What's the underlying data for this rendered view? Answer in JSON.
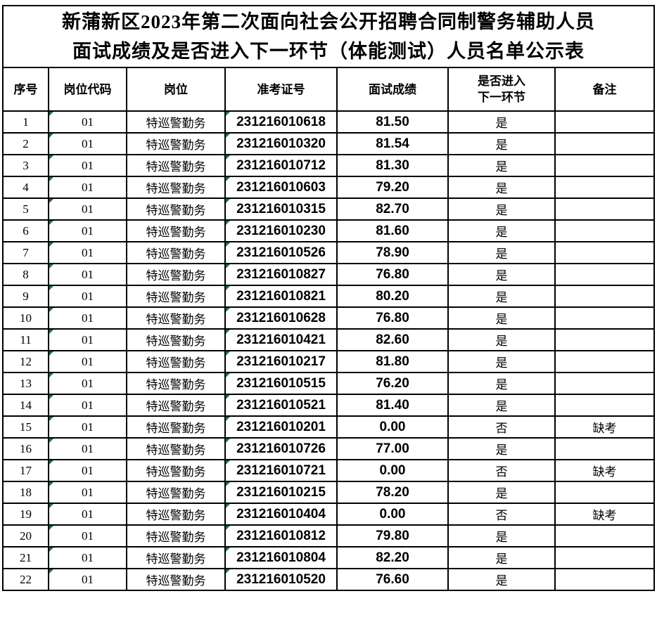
{
  "title": {
    "line1": "新蒲新区2023年第二次面向社会公开招聘合同制警务辅助人员",
    "line2": "面试成绩及是否进入下一环节（体能测试）人员名单公示表"
  },
  "table": {
    "headers": {
      "no": "序号",
      "code": "岗位代码",
      "post": "岗位",
      "ticket": "准考证号",
      "score": "面试成绩",
      "pass": "是否进入\n下一环节",
      "note": "备注"
    }
  },
  "rows": [
    {
      "no": "1",
      "code": "01",
      "post": "特巡警勤务",
      "ticket": "231216010618",
      "score": "81.50",
      "pass": "是",
      "note": ""
    },
    {
      "no": "2",
      "code": "01",
      "post": "特巡警勤务",
      "ticket": "231216010320",
      "score": "81.54",
      "pass": "是",
      "note": ""
    },
    {
      "no": "3",
      "code": "01",
      "post": "特巡警勤务",
      "ticket": "231216010712",
      "score": "81.30",
      "pass": "是",
      "note": ""
    },
    {
      "no": "4",
      "code": "01",
      "post": "特巡警勤务",
      "ticket": "231216010603",
      "score": "79.20",
      "pass": "是",
      "note": ""
    },
    {
      "no": "5",
      "code": "01",
      "post": "特巡警勤务",
      "ticket": "231216010315",
      "score": "82.70",
      "pass": "是",
      "note": ""
    },
    {
      "no": "6",
      "code": "01",
      "post": "特巡警勤务",
      "ticket": "231216010230",
      "score": "81.60",
      "pass": "是",
      "note": ""
    },
    {
      "no": "7",
      "code": "01",
      "post": "特巡警勤务",
      "ticket": "231216010526",
      "score": "78.90",
      "pass": "是",
      "note": ""
    },
    {
      "no": "8",
      "code": "01",
      "post": "特巡警勤务",
      "ticket": "231216010827",
      "score": "76.80",
      "pass": "是",
      "note": ""
    },
    {
      "no": "9",
      "code": "01",
      "post": "特巡警勤务",
      "ticket": "231216010821",
      "score": "80.20",
      "pass": "是",
      "note": ""
    },
    {
      "no": "10",
      "code": "01",
      "post": "特巡警勤务",
      "ticket": "231216010628",
      "score": "76.80",
      "pass": "是",
      "note": ""
    },
    {
      "no": "11",
      "code": "01",
      "post": "特巡警勤务",
      "ticket": "231216010421",
      "score": "82.60",
      "pass": "是",
      "note": ""
    },
    {
      "no": "12",
      "code": "01",
      "post": "特巡警勤务",
      "ticket": "231216010217",
      "score": "81.80",
      "pass": "是",
      "note": ""
    },
    {
      "no": "13",
      "code": "01",
      "post": "特巡警勤务",
      "ticket": "231216010515",
      "score": "76.20",
      "pass": "是",
      "note": ""
    },
    {
      "no": "14",
      "code": "01",
      "post": "特巡警勤务",
      "ticket": "231216010521",
      "score": "81.40",
      "pass": "是",
      "note": ""
    },
    {
      "no": "15",
      "code": "01",
      "post": "特巡警勤务",
      "ticket": "231216010201",
      "score": "0.00",
      "pass": "否",
      "note": "缺考"
    },
    {
      "no": "16",
      "code": "01",
      "post": "特巡警勤务",
      "ticket": "231216010726",
      "score": "77.00",
      "pass": "是",
      "note": ""
    },
    {
      "no": "17",
      "code": "01",
      "post": "特巡警勤务",
      "ticket": "231216010721",
      "score": "0.00",
      "pass": "否",
      "note": "缺考"
    },
    {
      "no": "18",
      "code": "01",
      "post": "特巡警勤务",
      "ticket": "231216010215",
      "score": "78.20",
      "pass": "是",
      "note": ""
    },
    {
      "no": "19",
      "code": "01",
      "post": "特巡警勤务",
      "ticket": "231216010404",
      "score": "0.00",
      "pass": "否",
      "note": "缺考"
    },
    {
      "no": "20",
      "code": "01",
      "post": "特巡警勤务",
      "ticket": "231216010812",
      "score": "79.80",
      "pass": "是",
      "note": ""
    },
    {
      "no": "21",
      "code": "01",
      "post": "特巡警勤务",
      "ticket": "231216010804",
      "score": "82.20",
      "pass": "是",
      "note": ""
    },
    {
      "no": "22",
      "code": "01",
      "post": "特巡警勤务",
      "ticket": "231216010520",
      "score": "76.60",
      "pass": "是",
      "note": ""
    }
  ],
  "colors": {
    "border": "#000000",
    "flag_triangle": "#1e7145",
    "background": "#ffffff"
  }
}
